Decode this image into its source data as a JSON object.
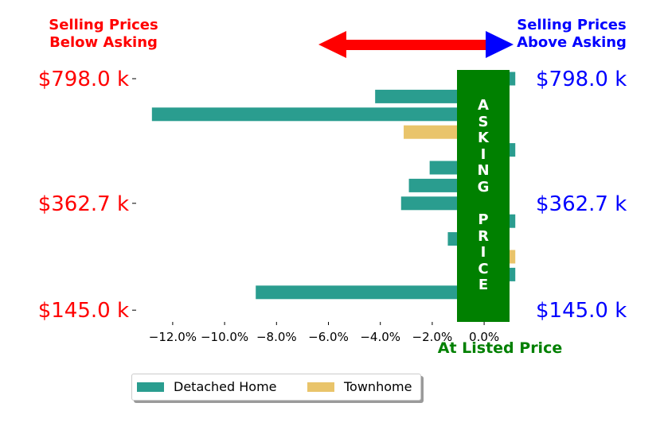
{
  "header": {
    "below_label": "Selling Prices\nBelow Asking",
    "above_label": "Selling Prices\nAbove Asking",
    "below_color": "#ff0000",
    "above_color": "#0000ff"
  },
  "asking_band": {
    "text": "ASKING PRICE",
    "color": "#008000"
  },
  "listed_label": "At Listed Price",
  "listed_color": "#008000",
  "legend": [
    {
      "label": "Detached Home",
      "color": "#2a9d8f"
    },
    {
      "label": "Townhome",
      "color": "#e9c46a"
    }
  ],
  "chart_data": {
    "type": "bar",
    "orientation": "horizontal",
    "xlabel": "",
    "ylabel": "",
    "xlim": [
      -13.5,
      1.5
    ],
    "x_ticks": [
      -12,
      -10,
      -8,
      -6,
      -4,
      -2,
      0
    ],
    "x_tick_labels": [
      "−12.0%",
      "−10.0%",
      "−8.0%",
      "−6.0%",
      "−4.0%",
      "−2.0%",
      "0.0%"
    ],
    "y_tick_labels_left": [
      "$798.0 k",
      "$362.7 k",
      "$145.0 k"
    ],
    "y_tick_labels_right": [
      "$798.0 k",
      "$362.7 k",
      "$145.0 k"
    ],
    "y_tick_label_rows": [
      0,
      7,
      13
    ],
    "bars": [
      {
        "row": 0,
        "series": "Detached Home",
        "value": 1.2
      },
      {
        "row": 1,
        "series": "Detached Home",
        "value": -4.2
      },
      {
        "row": 2,
        "series": "Detached Home",
        "value": -12.8
      },
      {
        "row": 3,
        "series": "Townhome",
        "value": -3.1
      },
      {
        "row": 4,
        "series": "Detached Home",
        "value": 1.2
      },
      {
        "row": 5,
        "series": "Detached Home",
        "value": -2.1
      },
      {
        "row": 6,
        "series": "Detached Home",
        "value": -2.9
      },
      {
        "row": 7,
        "series": "Detached Home",
        "value": -3.2
      },
      {
        "row": 8,
        "series": "Detached Home",
        "value": 1.2
      },
      {
        "row": 9,
        "series": "Detached Home",
        "value": -1.4
      },
      {
        "row": 10,
        "series": "Townhome",
        "value": 1.2
      },
      {
        "row": 11,
        "series": "Detached Home",
        "value": 1.2
      },
      {
        "row": 12,
        "series": "Detached Home",
        "value": -8.8
      }
    ],
    "series": [
      {
        "name": "Detached Home",
        "color": "#2a9d8f"
      },
      {
        "name": "Townhome",
        "color": "#e9c46a"
      }
    ],
    "arrow_color": "#ff0000",
    "arrow_head_right_color": "#0000ff",
    "legend_position": "bottom-left",
    "grid": false
  }
}
